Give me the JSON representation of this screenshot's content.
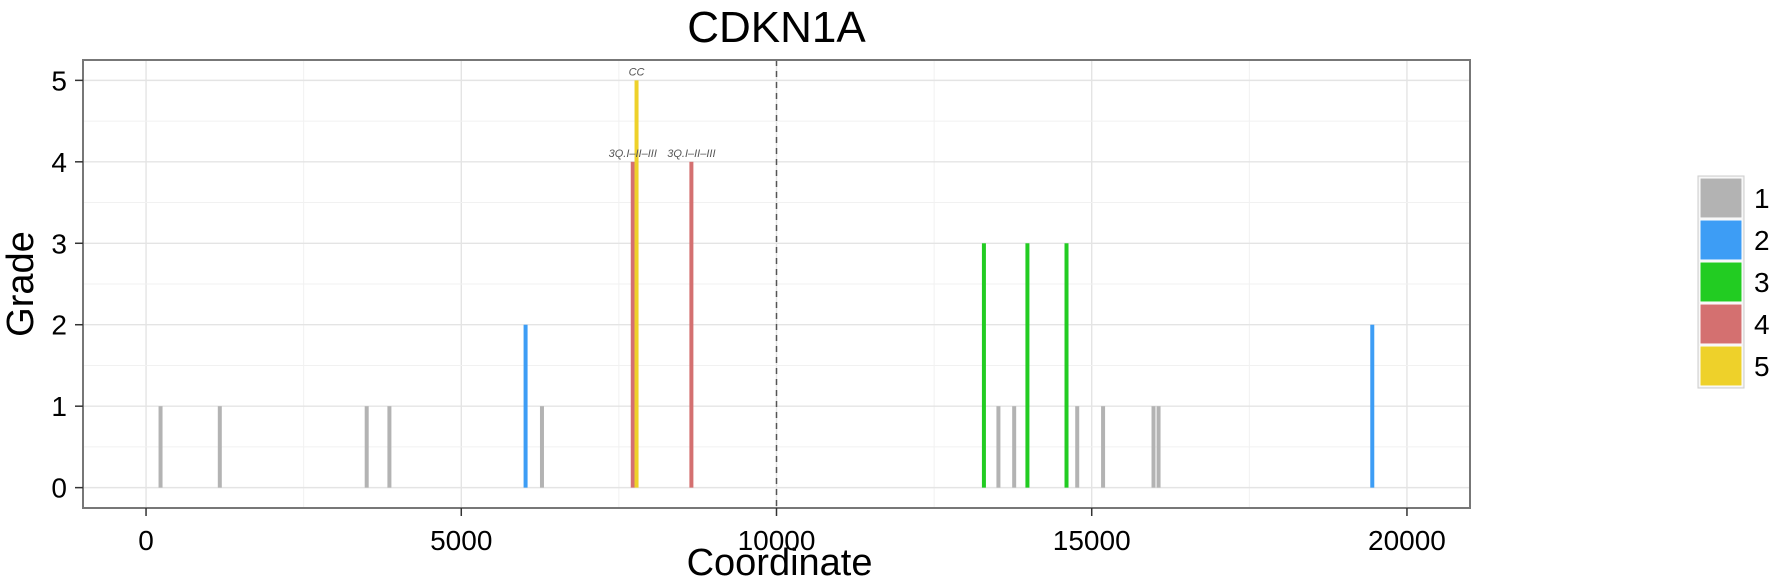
{
  "chart_data": {
    "type": "bar",
    "title": "CDKN1A",
    "xlabel": "Coordinate",
    "ylabel": "Grade",
    "xlim": [
      -1000,
      21000
    ],
    "ylim": [
      -0.25,
      5.25
    ],
    "xticks": [
      0,
      5000,
      10000,
      15000,
      20000
    ],
    "yticks": [
      0,
      1,
      2,
      3,
      4,
      5
    ],
    "grid": true,
    "reference_line": {
      "x": 10000,
      "style": "dashed"
    },
    "legend": {
      "placement": "right",
      "entries": [
        {
          "label": "1",
          "color": "#b3b3b3"
        },
        {
          "label": "2",
          "color": "#3d9df5"
        },
        {
          "label": "3",
          "color": "#22cc22"
        },
        {
          "label": "4",
          "color": "#d47070"
        },
        {
          "label": "5",
          "color": "#eed12a"
        }
      ]
    },
    "bars": [
      {
        "x": 230,
        "grade": 1
      },
      {
        "x": 1170,
        "grade": 1
      },
      {
        "x": 3500,
        "grade": 1
      },
      {
        "x": 3860,
        "grade": 1
      },
      {
        "x": 6020,
        "grade": 2
      },
      {
        "x": 6280,
        "grade": 1
      },
      {
        "x": 7720,
        "grade": 4,
        "label": "3Q.I–II–III"
      },
      {
        "x": 7780,
        "grade": 5,
        "label": "CC"
      },
      {
        "x": 8650,
        "grade": 4,
        "label": "3Q.I–II–III"
      },
      {
        "x": 13290,
        "grade": 3
      },
      {
        "x": 13520,
        "grade": 1
      },
      {
        "x": 13770,
        "grade": 1
      },
      {
        "x": 13980,
        "grade": 3
      },
      {
        "x": 14600,
        "grade": 3
      },
      {
        "x": 14770,
        "grade": 1
      },
      {
        "x": 15180,
        "grade": 1
      },
      {
        "x": 15980,
        "grade": 1
      },
      {
        "x": 16060,
        "grade": 1
      },
      {
        "x": 19450,
        "grade": 2
      }
    ]
  }
}
